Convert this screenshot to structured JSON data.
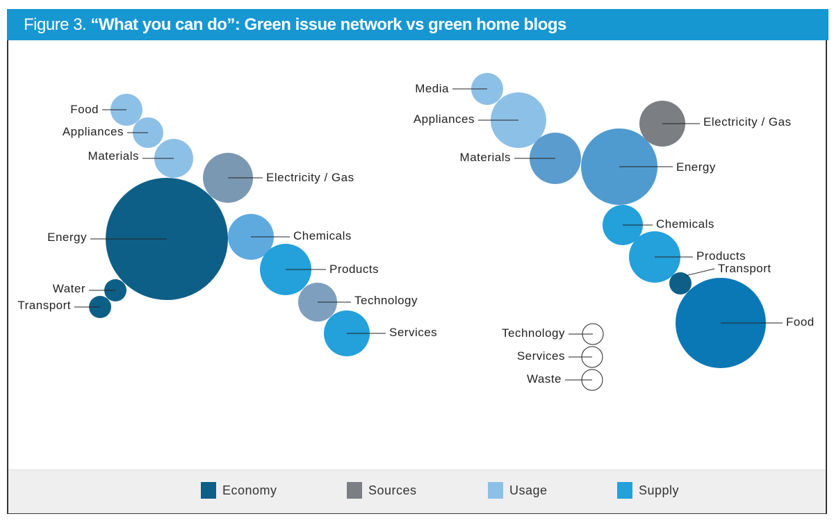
{
  "header": {
    "lead": "Figure 3. ",
    "title": "“What you can do”: Green issue network vs green home blogs"
  },
  "colors": {
    "economy": "#0e5f87",
    "sources": "#7b7e83",
    "usage": "#8dc0e6",
    "supply": "#24a0da",
    "header": "#1697d2"
  },
  "legend": [
    {
      "label": "Economy",
      "category": "economy"
    },
    {
      "label": "Sources",
      "category": "sources"
    },
    {
      "label": "Usage",
      "category": "usage"
    },
    {
      "label": "Supply",
      "category": "supply"
    }
  ],
  "networks": [
    {
      "name": "green-issue-network",
      "nodes": [
        {
          "label": "Food",
          "category": "usage"
        },
        {
          "label": "Appliances",
          "category": "usage"
        },
        {
          "label": "Materials",
          "category": "usage"
        },
        {
          "label": "Electricity / Gas",
          "category": "sources"
        },
        {
          "label": "Energy",
          "category": "economy"
        },
        {
          "label": "Chemicals",
          "category": "usage"
        },
        {
          "label": "Products",
          "category": "supply"
        },
        {
          "label": "Technology",
          "category": "sources"
        },
        {
          "label": "Services",
          "category": "supply"
        },
        {
          "label": "Water",
          "category": "economy"
        },
        {
          "label": "Transport",
          "category": "economy"
        }
      ]
    },
    {
      "name": "green-home-blogs",
      "nodes": [
        {
          "label": "Media",
          "category": "usage"
        },
        {
          "label": "Appliances",
          "category": "usage"
        },
        {
          "label": "Materials",
          "category": "usage"
        },
        {
          "label": "Energy",
          "category": "usage"
        },
        {
          "label": "Electricity / Gas",
          "category": "sources"
        },
        {
          "label": "Chemicals",
          "category": "supply"
        },
        {
          "label": "Products",
          "category": "supply"
        },
        {
          "label": "Transport",
          "category": "economy"
        },
        {
          "label": "Food",
          "category": "economy"
        },
        {
          "label": "Technology",
          "category": "none"
        },
        {
          "label": "Services",
          "category": "none"
        },
        {
          "label": "Waste",
          "category": "none"
        }
      ]
    }
  ]
}
